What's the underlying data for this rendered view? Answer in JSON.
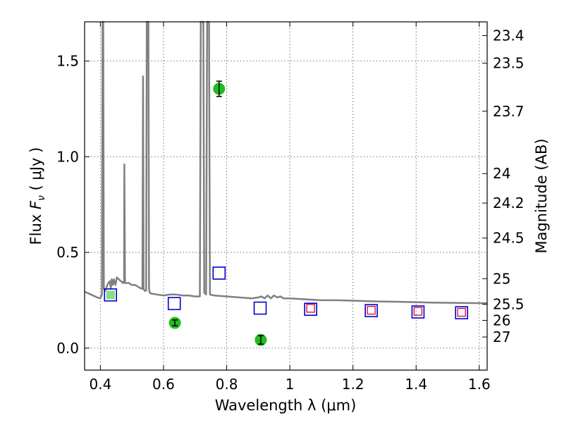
{
  "chart_data": {
    "type": "scatter",
    "xlabel": "Wavelength  λ (μm)",
    "ylabel": "Flux  F_ν  ( μJy )",
    "ylabel_right": "Magnitude (AB)",
    "xlim": [
      0.35,
      1.625
    ],
    "ylim": [
      -0.115,
      1.705
    ],
    "grid": true,
    "x_ticks": [
      {
        "value": 0.4,
        "label": "0.4"
      },
      {
        "value": 0.6,
        "label": "0.6"
      },
      {
        "value": 0.8,
        "label": "0.8"
      },
      {
        "value": 1.0,
        "label": "1"
      },
      {
        "value": 1.2,
        "label": "1.2"
      },
      {
        "value": 1.4,
        "label": "1.4"
      },
      {
        "value": 1.6,
        "label": "1.6"
      }
    ],
    "y_ticks": [
      {
        "value": 0.0,
        "label": "0.0"
      },
      {
        "value": 0.5,
        "label": "0.5"
      },
      {
        "value": 1.0,
        "label": "1.0"
      },
      {
        "value": 1.5,
        "label": "1.5"
      }
    ],
    "right_ticks": [
      {
        "flux": 1.633,
        "label": "23.4"
      },
      {
        "flux": 1.489,
        "label": "23.5"
      },
      {
        "flux": 1.238,
        "label": "23.7"
      },
      {
        "flux": 0.912,
        "label": "24"
      },
      {
        "flux": 0.758,
        "label": "24.2"
      },
      {
        "flux": 0.575,
        "label": "24.5"
      },
      {
        "flux": 0.363,
        "label": "25"
      },
      {
        "flux": 0.229,
        "label": "25.5"
      },
      {
        "flux": 0.145,
        "label": "26"
      },
      {
        "flux": 0.058,
        "label": "27"
      }
    ],
    "colors": {
      "model": "#808080",
      "observed": "#22bb22",
      "model_photometry": "#0000cc",
      "alt_photometry": "#dd0033",
      "alt_fill": "#88dd88",
      "grid": "#555555"
    },
    "series": [
      {
        "type": "line",
        "points": [
          [
            0.35,
            0.295
          ],
          [
            0.37,
            0.28
          ],
          [
            0.39,
            0.265
          ],
          [
            0.4,
            0.26
          ],
          [
            0.405,
            0.28
          ],
          [
            0.407,
            1.705
          ],
          [
            0.409,
            1.705
          ],
          [
            0.411,
            0.31
          ],
          [
            0.415,
            0.3
          ],
          [
            0.42,
            0.32
          ],
          [
            0.425,
            0.34
          ],
          [
            0.43,
            0.35
          ],
          [
            0.433,
            0.31
          ],
          [
            0.436,
            0.36
          ],
          [
            0.44,
            0.33
          ],
          [
            0.443,
            0.36
          ],
          [
            0.448,
            0.33
          ],
          [
            0.452,
            0.37
          ],
          [
            0.458,
            0.36
          ],
          [
            0.465,
            0.35
          ],
          [
            0.472,
            0.34
          ],
          [
            0.475,
            0.35
          ],
          [
            0.476,
            0.96
          ],
          [
            0.478,
            0.34
          ],
          [
            0.49,
            0.34
          ],
          [
            0.5,
            0.33
          ],
          [
            0.51,
            0.33
          ],
          [
            0.52,
            0.32
          ],
          [
            0.53,
            0.31
          ],
          [
            0.533,
            0.31
          ],
          [
            0.535,
            1.42
          ],
          [
            0.537,
            0.31
          ],
          [
            0.54,
            0.3
          ],
          [
            0.545,
            0.3
          ],
          [
            0.547,
            1.705
          ],
          [
            0.55,
            1.705
          ],
          [
            0.552,
            1.705
          ],
          [
            0.554,
            0.31
          ],
          [
            0.556,
            0.29
          ],
          [
            0.56,
            0.285
          ],
          [
            0.58,
            0.28
          ],
          [
            0.6,
            0.275
          ],
          [
            0.62,
            0.28
          ],
          [
            0.64,
            0.28
          ],
          [
            0.66,
            0.275
          ],
          [
            0.68,
            0.275
          ],
          [
            0.7,
            0.27
          ],
          [
            0.715,
            0.27
          ],
          [
            0.718,
            1.705
          ],
          [
            0.726,
            1.705
          ],
          [
            0.729,
            0.29
          ],
          [
            0.735,
            0.28
          ],
          [
            0.738,
            1.705
          ],
          [
            0.744,
            1.705
          ],
          [
            0.747,
            0.28
          ],
          [
            0.76,
            0.275
          ],
          [
            0.8,
            0.27
          ],
          [
            0.84,
            0.265
          ],
          [
            0.88,
            0.26
          ],
          [
            0.9,
            0.265
          ],
          [
            0.91,
            0.27
          ],
          [
            0.92,
            0.26
          ],
          [
            0.93,
            0.275
          ],
          [
            0.94,
            0.26
          ],
          [
            0.95,
            0.275
          ],
          [
            0.96,
            0.265
          ],
          [
            0.97,
            0.27
          ],
          [
            0.98,
            0.26
          ],
          [
            1.0,
            0.26
          ],
          [
            1.05,
            0.255
          ],
          [
            1.1,
            0.25
          ],
          [
            1.15,
            0.25
          ],
          [
            1.2,
            0.248
          ],
          [
            1.25,
            0.245
          ],
          [
            1.3,
            0.243
          ],
          [
            1.35,
            0.242
          ],
          [
            1.4,
            0.24
          ],
          [
            1.45,
            0.238
          ],
          [
            1.5,
            0.237
          ],
          [
            1.55,
            0.236
          ],
          [
            1.6,
            0.235
          ],
          [
            1.625,
            0.235
          ]
        ]
      },
      {
        "type": "scatter",
        "points": [
          {
            "x": 0.776,
            "y": 1.355,
            "err": 0.04
          },
          {
            "x": 0.636,
            "y": 0.132,
            "err": 0.015
          },
          {
            "x": 0.908,
            "y": 0.043,
            "err": 0.022
          }
        ]
      },
      {
        "type": "scatter",
        "points": [
          {
            "x": 0.432,
            "y": 0.278
          },
          {
            "x": 0.634,
            "y": 0.233
          },
          {
            "x": 0.776,
            "y": 0.392
          },
          {
            "x": 0.906,
            "y": 0.209
          },
          {
            "x": 1.066,
            "y": 0.203
          },
          {
            "x": 1.258,
            "y": 0.196
          },
          {
            "x": 1.406,
            "y": 0.189
          },
          {
            "x": 1.544,
            "y": 0.185
          }
        ]
      },
      {
        "type": "scatter",
        "points": [
          {
            "x": 0.432,
            "y": 0.278
          },
          {
            "x": 1.066,
            "y": 0.208
          },
          {
            "x": 1.258,
            "y": 0.198
          },
          {
            "x": 1.406,
            "y": 0.192
          },
          {
            "x": 1.544,
            "y": 0.187
          }
        ]
      }
    ]
  }
}
